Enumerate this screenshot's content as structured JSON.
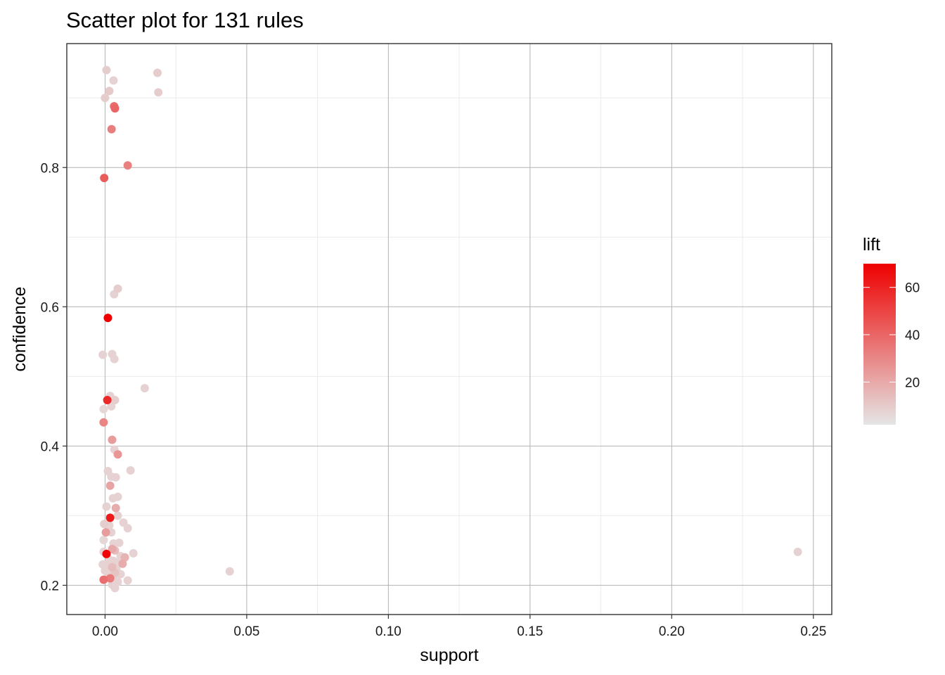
{
  "chart_data": {
    "type": "scatter",
    "title": "Scatter plot for 131 rules",
    "xlabel": "support",
    "ylabel": "confidence",
    "xlim": [
      -0.0135,
      0.2565
    ],
    "ylim": [
      0.158,
      0.978
    ],
    "x_ticks": [
      0.0,
      0.05,
      0.1,
      0.15,
      0.2,
      0.25
    ],
    "x_tick_labels": [
      "0.00",
      "0.05",
      "0.10",
      "0.15",
      "0.20",
      "0.25"
    ],
    "y_ticks": [
      0.2,
      0.4,
      0.6,
      0.8
    ],
    "y_tick_labels": [
      "0.2",
      "0.4",
      "0.6",
      "0.8"
    ],
    "grid": true,
    "color_legend": {
      "title": "lift",
      "range": [
        2,
        70
      ],
      "ticks": [
        20,
        40,
        60
      ],
      "tick_labels": [
        "20",
        "40",
        "60"
      ],
      "low_color": "#e5e5e5",
      "high_color": "#ee0000",
      "placement": "right"
    },
    "points": [
      {
        "x": 0.0005,
        "y": 0.94,
        "lift": 6
      },
      {
        "x": 0.003,
        "y": 0.925,
        "lift": 5
      },
      {
        "x": 0.0185,
        "y": 0.936,
        "lift": 6
      },
      {
        "x": 0.0015,
        "y": 0.91,
        "lift": 7
      },
      {
        "x": 0.0188,
        "y": 0.908,
        "lift": 6
      },
      {
        "x": 0.0,
        "y": 0.9,
        "lift": 6
      },
      {
        "x": 0.0032,
        "y": 0.888,
        "lift": 32
      },
      {
        "x": 0.0035,
        "y": 0.885,
        "lift": 35
      },
      {
        "x": 0.0023,
        "y": 0.855,
        "lift": 27
      },
      {
        "x": 0.008,
        "y": 0.803,
        "lift": 26
      },
      {
        "x": -0.0003,
        "y": 0.785,
        "lift": 38
      },
      {
        "x": 0.0045,
        "y": 0.626,
        "lift": 6
      },
      {
        "x": 0.0032,
        "y": 0.618,
        "lift": 5
      },
      {
        "x": 0.001,
        "y": 0.584,
        "lift": 70
      },
      {
        "x": -0.0008,
        "y": 0.531,
        "lift": 5
      },
      {
        "x": 0.0025,
        "y": 0.532,
        "lift": 5
      },
      {
        "x": 0.0033,
        "y": 0.525,
        "lift": 5
      },
      {
        "x": 0.014,
        "y": 0.483,
        "lift": 5
      },
      {
        "x": 0.0018,
        "y": 0.472,
        "lift": 5
      },
      {
        "x": 0.0035,
        "y": 0.466,
        "lift": 6
      },
      {
        "x": 0.0008,
        "y": 0.466,
        "lift": 55
      },
      {
        "x": 0.0022,
        "y": 0.457,
        "lift": 5
      },
      {
        "x": -0.0005,
        "y": 0.453,
        "lift": 4
      },
      {
        "x": -0.0005,
        "y": 0.434,
        "lift": 25
      },
      {
        "x": 0.0025,
        "y": 0.409,
        "lift": 18
      },
      {
        "x": 0.0033,
        "y": 0.395,
        "lift": 5
      },
      {
        "x": 0.0045,
        "y": 0.388,
        "lift": 20
      },
      {
        "x": 0.001,
        "y": 0.364,
        "lift": 5
      },
      {
        "x": 0.009,
        "y": 0.365,
        "lift": 5
      },
      {
        "x": 0.0022,
        "y": 0.356,
        "lift": 5
      },
      {
        "x": 0.0038,
        "y": 0.355,
        "lift": 5
      },
      {
        "x": 0.0018,
        "y": 0.343,
        "lift": 16
      },
      {
        "x": 0.0028,
        "y": 0.325,
        "lift": 5
      },
      {
        "x": 0.0045,
        "y": 0.327,
        "lift": 5
      },
      {
        "x": 0.0005,
        "y": 0.313,
        "lift": 5
      },
      {
        "x": 0.0038,
        "y": 0.311,
        "lift": 14
      },
      {
        "x": 0.0045,
        "y": 0.3,
        "lift": 5
      },
      {
        "x": 0.0018,
        "y": 0.297,
        "lift": 60
      },
      {
        "x": 0.0065,
        "y": 0.29,
        "lift": 5
      },
      {
        "x": -0.0003,
        "y": 0.288,
        "lift": 6
      },
      {
        "x": 0.0015,
        "y": 0.286,
        "lift": 5
      },
      {
        "x": 0.008,
        "y": 0.282,
        "lift": 5
      },
      {
        "x": 0.0022,
        "y": 0.276,
        "lift": 5
      },
      {
        "x": 0.0003,
        "y": 0.276,
        "lift": 18
      },
      {
        "x": -0.0005,
        "y": 0.265,
        "lift": 4
      },
      {
        "x": 0.003,
        "y": 0.26,
        "lift": 5
      },
      {
        "x": 0.005,
        "y": 0.261,
        "lift": 5
      },
      {
        "x": 0.0025,
        "y": 0.252,
        "lift": 15
      },
      {
        "x": 0.0035,
        "y": 0.25,
        "lift": 10
      },
      {
        "x": -0.0005,
        "y": 0.248,
        "lift": 5
      },
      {
        "x": 0.01,
        "y": 0.246,
        "lift": 5
      },
      {
        "x": 0.0005,
        "y": 0.245,
        "lift": 68
      },
      {
        "x": 0.0055,
        "y": 0.242,
        "lift": 5
      },
      {
        "x": 0.007,
        "y": 0.24,
        "lift": 12
      },
      {
        "x": 0.0015,
        "y": 0.237,
        "lift": 5
      },
      {
        "x": 0.003,
        "y": 0.235,
        "lift": 5
      },
      {
        "x": 0.0045,
        "y": 0.232,
        "lift": 5
      },
      {
        "x": 0.0062,
        "y": 0.231,
        "lift": 14
      },
      {
        "x": -0.0008,
        "y": 0.23,
        "lift": 5
      },
      {
        "x": 0.0008,
        "y": 0.228,
        "lift": 5
      },
      {
        "x": 0.0025,
        "y": 0.226,
        "lift": 10
      },
      {
        "x": 0.004,
        "y": 0.224,
        "lift": 5
      },
      {
        "x": 0.0,
        "y": 0.221,
        "lift": 5
      },
      {
        "x": 0.044,
        "y": 0.22,
        "lift": 5
      },
      {
        "x": 0.0035,
        "y": 0.218,
        "lift": 8
      },
      {
        "x": 0.0055,
        "y": 0.216,
        "lift": 5
      },
      {
        "x": 0.0015,
        "y": 0.215,
        "lift": 5
      },
      {
        "x": 0.003,
        "y": 0.212,
        "lift": 5
      },
      {
        "x": 0.0018,
        "y": 0.21,
        "lift": 28
      },
      {
        "x": -0.0005,
        "y": 0.208,
        "lift": 32
      },
      {
        "x": 0.008,
        "y": 0.207,
        "lift": 5
      },
      {
        "x": 0.0045,
        "y": 0.205,
        "lift": 5
      },
      {
        "x": 0.0025,
        "y": 0.201,
        "lift": 5
      },
      {
        "x": 0.0035,
        "y": 0.196,
        "lift": 5
      },
      {
        "x": 0.2445,
        "y": 0.248,
        "lift": 5
      }
    ]
  }
}
